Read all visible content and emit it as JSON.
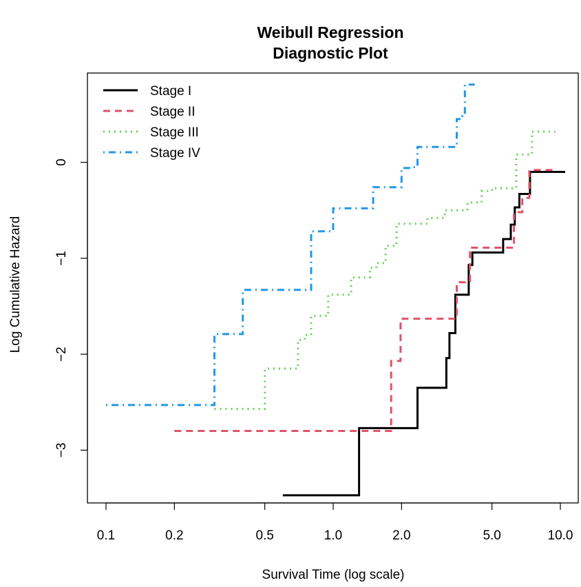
{
  "chart_data": {
    "type": "line",
    "step": true,
    "title": [
      "Weibull Regression",
      "Diagnostic Plot"
    ],
    "xlabel": "Survival Time (log scale)",
    "ylabel": "Log Cumulative Hazard",
    "x_scale": "log",
    "xlim": [
      0.1,
      11.0
    ],
    "ylim": [
      -3.6,
      0.9
    ],
    "x_ticks": [
      0.1,
      0.2,
      0.5,
      1.0,
      2.0,
      5.0,
      10.0
    ],
    "x_tick_labels": [
      "0.1",
      "0.2",
      "0.5",
      "1.0",
      "2.0",
      "5.0",
      "10.0"
    ],
    "y_ticks": [
      -3,
      -2,
      -1,
      0
    ],
    "y_tick_labels": [
      "−3",
      "−2",
      "−1",
      "0"
    ],
    "grid": false,
    "legend_position": "top-left",
    "series": [
      {
        "name": "Stage I",
        "color": "#000000",
        "dash": "solid",
        "x": [
          0.6,
          1.3,
          2.35,
          3.15,
          3.25,
          3.45,
          3.95,
          4.1,
          4.35,
          5.6,
          6.05,
          6.3,
          6.6,
          7.35,
          10.5
        ],
        "y": [
          -3.47,
          -2.77,
          -2.35,
          -2.04,
          -1.78,
          -1.38,
          -1.07,
          -0.94,
          -0.94,
          -0.8,
          -0.65,
          -0.47,
          -0.33,
          -0.1,
          -0.1
        ]
      },
      {
        "name": "Stage II",
        "color": "#DF536B",
        "dash": "dashed",
        "x": [
          0.2,
          1.8,
          1.98,
          3.5,
          3.8,
          4.0,
          6.25,
          6.8,
          7.3,
          9.5
        ],
        "y": [
          -2.8,
          -2.07,
          -1.63,
          -1.25,
          -1.24,
          -0.89,
          -0.52,
          -0.37,
          -0.08,
          -0.08
        ]
      },
      {
        "name": "Stage III",
        "color": "#61D04F",
        "dash": "dotted",
        "x": [
          0.3,
          0.5,
          0.7,
          0.75,
          0.8,
          0.95,
          1.2,
          1.45,
          1.55,
          1.7,
          1.9,
          2.6,
          3.1,
          3.9,
          4.5,
          5.0,
          6.4,
          7.5,
          9.5
        ],
        "y": [
          -2.57,
          -2.15,
          -1.85,
          -1.8,
          -1.6,
          -1.38,
          -1.2,
          -1.1,
          -1.05,
          -0.87,
          -0.64,
          -0.58,
          -0.5,
          -0.42,
          -0.3,
          -0.27,
          0.08,
          0.32,
          0.32
        ]
      },
      {
        "name": "Stage IV",
        "color": "#2297E6",
        "dash": "dotdash",
        "x": [
          0.1,
          0.3,
          0.4,
          0.8,
          1.0,
          1.5,
          2.0,
          2.25,
          2.35,
          3.5,
          3.7,
          3.8,
          4.2
        ],
        "y": [
          -2.53,
          -1.79,
          -1.33,
          -0.72,
          -0.48,
          -0.26,
          -0.06,
          -0.05,
          0.16,
          0.45,
          0.48,
          0.81,
          0.81
        ]
      }
    ]
  }
}
